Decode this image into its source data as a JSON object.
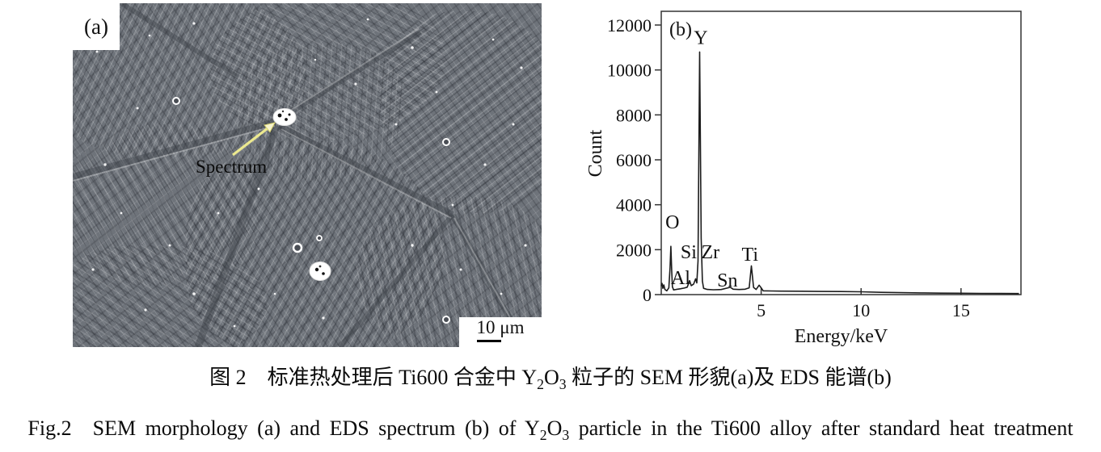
{
  "panel_a": {
    "label": "(a)",
    "annotation": "Spectrum",
    "scale_bar": "10 μm",
    "arrow_color": "#ece98f",
    "background_color": "#6e737a"
  },
  "chart_data": {
    "type": "line",
    "panel_label": "(b)",
    "xlabel": "Energy/keV",
    "ylabel": "Count",
    "xlim": [
      0,
      18
    ],
    "ylim": [
      0,
      12000
    ],
    "xticks": [
      5,
      10,
      15
    ],
    "yticks": [
      0,
      2000,
      4000,
      6000,
      8000,
      10000,
      12000
    ],
    "grid": false,
    "legend": "none",
    "line_color": "#1c1c1c",
    "series": [
      {
        "name": "EDS spectrum",
        "points": [
          [
            0,
            380
          ],
          [
            0.04,
            500
          ],
          [
            0.08,
            280
          ],
          [
            0.13,
            430
          ],
          [
            0.18,
            230
          ],
          [
            0.28,
            170
          ],
          [
            0.38,
            300
          ],
          [
            0.44,
            1200
          ],
          [
            0.48,
            2150
          ],
          [
            0.52,
            1100
          ],
          [
            0.56,
            350
          ],
          [
            0.62,
            210
          ],
          [
            0.75,
            230
          ],
          [
            0.95,
            260
          ],
          [
            1.15,
            290
          ],
          [
            1.3,
            330
          ],
          [
            1.42,
            620
          ],
          [
            1.5,
            400
          ],
          [
            1.62,
            470
          ],
          [
            1.72,
            700
          ],
          [
            1.78,
            520
          ],
          [
            1.84,
            1500
          ],
          [
            1.92,
            10800
          ],
          [
            2.0,
            2500
          ],
          [
            2.06,
            600
          ],
          [
            2.12,
            280
          ],
          [
            2.3,
            230
          ],
          [
            2.6,
            215
          ],
          [
            3.0,
            225
          ],
          [
            3.3,
            290
          ],
          [
            3.45,
            330
          ],
          [
            3.6,
            240
          ],
          [
            3.9,
            225
          ],
          [
            4.2,
            240
          ],
          [
            4.4,
            300
          ],
          [
            4.51,
            1280
          ],
          [
            4.62,
            320
          ],
          [
            4.75,
            230
          ],
          [
            4.9,
            420
          ],
          [
            5.0,
            300
          ],
          [
            5.1,
            170
          ],
          [
            5.5,
            160
          ],
          [
            6.0,
            155
          ],
          [
            7.0,
            150
          ],
          [
            8.0,
            140
          ],
          [
            9.0,
            135
          ],
          [
            10.0,
            125
          ],
          [
            11.0,
            100
          ],
          [
            12.0,
            85
          ],
          [
            13.0,
            75
          ],
          [
            14.0,
            65
          ],
          [
            15.0,
            60
          ],
          [
            16.0,
            55
          ],
          [
            17.0,
            50
          ],
          [
            17.9,
            45
          ]
        ]
      }
    ],
    "peak_labels": [
      {
        "element": "Y",
        "x": 1.98,
        "y": 11150
      },
      {
        "element": "O",
        "x": 0.56,
        "y": 2950
      },
      {
        "element": "Si",
        "x": 1.37,
        "y": 1620
      },
      {
        "element": "Al",
        "x": 0.97,
        "y": 470
      },
      {
        "element": "Zr",
        "x": 2.46,
        "y": 1620
      },
      {
        "element": "Sn",
        "x": 3.31,
        "y": 360
      },
      {
        "element": "Ti",
        "x": 4.44,
        "y": 1510
      }
    ]
  },
  "caption": {
    "cn_rich": [
      {
        "t": "图 2　标准热处理后 Ti600 合金中 Y"
      },
      {
        "t": "2",
        "sub": true
      },
      {
        "t": "O"
      },
      {
        "t": "3",
        "sub": true
      },
      {
        "t": " 粒子的 SEM 形貌(a)及 EDS 能谱(b)"
      }
    ],
    "en_rich": [
      {
        "t": "Fig.2　SEM morphology (a) and EDS spectrum (b) of Y"
      },
      {
        "t": "2",
        "sub": true
      },
      {
        "t": "O"
      },
      {
        "t": "3",
        "sub": true
      },
      {
        "t": " particle in the Ti600 alloy after standard heat treatment"
      }
    ]
  }
}
